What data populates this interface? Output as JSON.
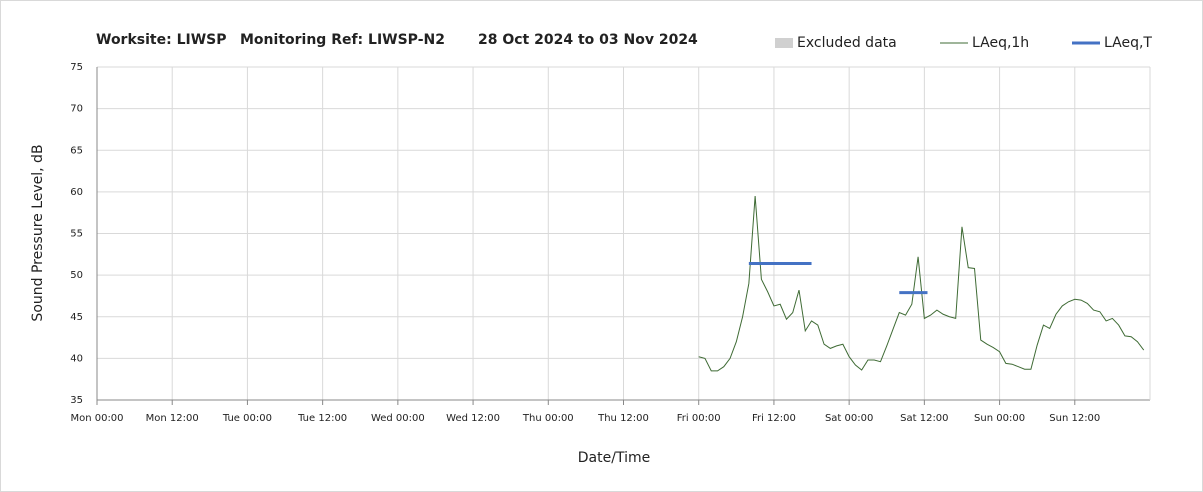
{
  "chart_data": {
    "type": "line",
    "title": "Worksite: LIWSP",
    "monitoring_ref": "Monitoring Ref: LIWSP-N2",
    "date_range": "28 Oct 2024 to 03 Nov 2024",
    "x_label": "Date/Time",
    "y_label": "Sound Pressure Level, dB",
    "xlim": [
      0,
      168
    ],
    "xticks": [
      {
        "value": 0,
        "label": "Mon 00:00"
      },
      {
        "value": 12,
        "label": "Mon 12:00"
      },
      {
        "value": 24,
        "label": "Tue 00:00"
      },
      {
        "value": 36,
        "label": "Tue 12:00"
      },
      {
        "value": 48,
        "label": "Wed 00:00"
      },
      {
        "value": 60,
        "label": "Wed 12:00"
      },
      {
        "value": 72,
        "label": "Thu 00:00"
      },
      {
        "value": 84,
        "label": "Thu 12:00"
      },
      {
        "value": 96,
        "label": "Fri 00:00"
      },
      {
        "value": 108,
        "label": "Fri 12:00"
      },
      {
        "value": 120,
        "label": "Sat 00:00"
      },
      {
        "value": 132,
        "label": "Sat 12:00"
      },
      {
        "value": 144,
        "label": "Sun 00:00"
      },
      {
        "value": 156,
        "label": "Sun 12:00"
      }
    ],
    "ylim": [
      35,
      75
    ],
    "yticks": [
      35,
      40,
      45,
      50,
      55,
      60,
      65,
      70,
      75
    ],
    "grid": true,
    "series": [
      {
        "name": "Excluded data",
        "color": "#d0d0d0",
        "x": [],
        "values": []
      },
      {
        "name": "LAeq,1h",
        "color": "#3f6b35",
        "x": [
          96,
          97,
          98,
          99,
          100,
          101,
          102,
          103,
          104,
          105,
          106,
          107,
          108,
          109,
          110,
          111,
          112,
          113,
          114,
          115,
          116,
          117,
          118,
          119,
          120,
          121,
          122,
          123,
          124,
          125,
          126,
          127,
          128,
          129,
          130,
          131,
          132,
          133,
          134,
          135,
          136,
          137,
          138,
          139,
          140,
          141,
          142,
          143,
          144,
          145,
          146,
          147,
          148,
          149,
          150,
          151,
          152,
          153,
          154,
          155,
          156,
          157,
          158,
          159,
          160,
          161,
          162,
          163,
          164,
          165,
          166,
          167
        ],
        "values": [
          40.2,
          40,
          38.5,
          38.5,
          39,
          40,
          42,
          45,
          49,
          59.5,
          49.5,
          48,
          46.3,
          46.5,
          44.7,
          45.5,
          48.2,
          43.3,
          44.5,
          44,
          41.7,
          41.2,
          41.5,
          41.7,
          40.2,
          39.2,
          38.6,
          39.8,
          39.8,
          39.6,
          41.5,
          43.5,
          45.5,
          45.2,
          46.5,
          52.2,
          44.8,
          45.2,
          45.8,
          45.3,
          45,
          44.8,
          55.8,
          50.9,
          50.8,
          42.2,
          41.7,
          41.3,
          40.8,
          39.4,
          39.3,
          39,
          38.7,
          38.7,
          41.6,
          44,
          43.6,
          45.3,
          46.3,
          46.8,
          47.1,
          47,
          46.6,
          45.8,
          45.6,
          44.5,
          44.8,
          44,
          42.7,
          42.6,
          42,
          41
        ]
      },
      {
        "name": "LAeq,T",
        "color": "#4472c4",
        "x": [
          104,
          114,
          120,
          128,
          132.5
        ],
        "values": [
          51.4,
          51.4,
          null,
          47.9,
          47.9
        ]
      }
    ]
  }
}
